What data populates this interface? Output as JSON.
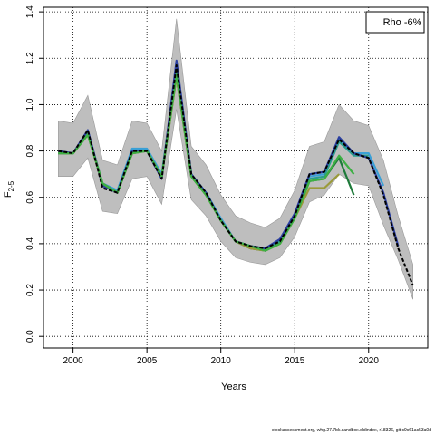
{
  "chart_data": {
    "type": "line",
    "xlabel": "Years",
    "ylabel": "F",
    "ylabel_sub": "2-5",
    "xlim": [
      1998,
      2024
    ],
    "ylim": [
      -0.05,
      1.42
    ],
    "x_ticks": [
      2000,
      2005,
      2010,
      2015,
      2020
    ],
    "y_ticks": [
      0.0,
      0.2,
      0.4,
      0.6,
      0.8,
      1.0,
      1.2,
      1.4
    ],
    "grid": true,
    "legend_text": "Rho -6%",
    "legend_position": "top-right",
    "footer_text": "stockassessment.org, whg.27.7bk.sandbox.oldindex, r18326, git:c9c61ac53a0d",
    "band": {
      "color": "#bebebe",
      "x": [
        1999,
        2000,
        2001,
        2002,
        2003,
        2004,
        2005,
        2006,
        2007,
        2008,
        2009,
        2010,
        2011,
        2012,
        2013,
        2014,
        2015,
        2016,
        2017,
        2018,
        2019,
        2020,
        2021,
        2022,
        2023
      ],
      "upper": [
        0.93,
        0.92,
        1.04,
        0.76,
        0.74,
        0.93,
        0.92,
        0.8,
        1.37,
        0.82,
        0.74,
        0.61,
        0.52,
        0.49,
        0.47,
        0.51,
        0.63,
        0.82,
        0.84,
        1.0,
        0.93,
        0.91,
        0.76,
        0.52,
        0.31
      ],
      "lower": [
        0.69,
        0.69,
        0.77,
        0.54,
        0.53,
        0.68,
        0.69,
        0.57,
        0.98,
        0.59,
        0.52,
        0.41,
        0.34,
        0.32,
        0.31,
        0.34,
        0.43,
        0.58,
        0.61,
        0.7,
        0.66,
        0.65,
        0.48,
        0.33,
        0.16
      ]
    },
    "series": [
      {
        "color": "#000000",
        "dashed": true,
        "x": [
          1999,
          2000,
          2001,
          2002,
          2003,
          2004,
          2005,
          2006,
          2007,
          2008,
          2009,
          2010,
          2011,
          2012,
          2013,
          2014,
          2015,
          2016,
          2017,
          2018,
          2019,
          2020,
          2021,
          2022,
          2023
        ],
        "values": [
          0.8,
          0.79,
          0.89,
          0.64,
          0.62,
          0.8,
          0.8,
          0.68,
          1.17,
          0.7,
          0.62,
          0.5,
          0.41,
          0.39,
          0.38,
          0.41,
          0.52,
          0.7,
          0.71,
          0.85,
          0.79,
          0.77,
          0.61,
          0.38,
          0.22
        ]
      },
      {
        "color": "#2b3fa0",
        "x": [
          1999,
          2000,
          2001,
          2002,
          2003,
          2004,
          2005,
          2006,
          2007,
          2008,
          2009,
          2010,
          2011,
          2012,
          2013,
          2014,
          2015,
          2016,
          2017,
          2018,
          2019,
          2020,
          2021,
          2022
        ],
        "values": [
          0.8,
          0.79,
          0.89,
          0.65,
          0.62,
          0.8,
          0.8,
          0.68,
          1.19,
          0.7,
          0.62,
          0.5,
          0.41,
          0.39,
          0.38,
          0.42,
          0.53,
          0.7,
          0.71,
          0.86,
          0.79,
          0.77,
          0.62,
          0.39
        ]
      },
      {
        "color": "#3aa0d6",
        "x": [
          1999,
          2000,
          2001,
          2002,
          2003,
          2004,
          2005,
          2006,
          2007,
          2008,
          2009,
          2010,
          2011,
          2012,
          2013,
          2014,
          2015,
          2016,
          2017,
          2018,
          2019,
          2020,
          2021
        ],
        "values": [
          0.79,
          0.79,
          0.88,
          0.66,
          0.63,
          0.81,
          0.81,
          0.7,
          1.15,
          0.7,
          0.62,
          0.51,
          0.41,
          0.39,
          0.37,
          0.41,
          0.52,
          0.69,
          0.7,
          0.85,
          0.79,
          0.79,
          0.65
        ]
      },
      {
        "color": "#2a9d8f",
        "x": [
          1999,
          2000,
          2001,
          2002,
          2003,
          2004,
          2005,
          2006,
          2007,
          2008,
          2009,
          2010,
          2011,
          2012,
          2013,
          2014,
          2015,
          2016,
          2017,
          2018,
          2019,
          2020
        ],
        "values": [
          0.79,
          0.79,
          0.88,
          0.66,
          0.62,
          0.8,
          0.8,
          0.69,
          1.14,
          0.7,
          0.62,
          0.5,
          0.41,
          0.39,
          0.37,
          0.41,
          0.52,
          0.68,
          0.69,
          0.84,
          0.78,
          0.78
        ]
      },
      {
        "color": "#3cb043",
        "x": [
          1999,
          2000,
          2001,
          2002,
          2003,
          2004,
          2005,
          2006,
          2007,
          2008,
          2009,
          2010,
          2011,
          2012,
          2013,
          2014,
          2015,
          2016,
          2017,
          2018,
          2019
        ],
        "values": [
          0.79,
          0.79,
          0.87,
          0.66,
          0.62,
          0.79,
          0.8,
          0.69,
          1.13,
          0.69,
          0.61,
          0.5,
          0.41,
          0.39,
          0.37,
          0.4,
          0.51,
          0.67,
          0.68,
          0.78,
          0.7
        ]
      },
      {
        "color": "#9a9a3a",
        "x": [
          1999,
          2000,
          2001,
          2002,
          2003,
          2004,
          2005,
          2006,
          2007,
          2008,
          2009,
          2010,
          2011,
          2012,
          2013,
          2014,
          2015,
          2016,
          2017,
          2018
        ],
        "values": [
          0.79,
          0.79,
          0.87,
          0.66,
          0.62,
          0.79,
          0.8,
          0.69,
          1.12,
          0.69,
          0.61,
          0.5,
          0.41,
          0.38,
          0.37,
          0.4,
          0.51,
          0.64,
          0.64,
          0.7
        ]
      },
      {
        "color": "#1e7a3a",
        "x": [
          1999,
          2000,
          2001,
          2002,
          2003,
          2004,
          2005,
          2006,
          2007,
          2008,
          2009,
          2010,
          2011,
          2012,
          2013,
          2014,
          2015,
          2016,
          2017,
          2018,
          2019
        ],
        "values": [
          0.79,
          0.79,
          0.87,
          0.66,
          0.62,
          0.79,
          0.8,
          0.69,
          1.12,
          0.69,
          0.61,
          0.5,
          0.41,
          0.38,
          0.37,
          0.4,
          0.51,
          0.67,
          0.68,
          0.77,
          0.61
        ]
      }
    ]
  }
}
